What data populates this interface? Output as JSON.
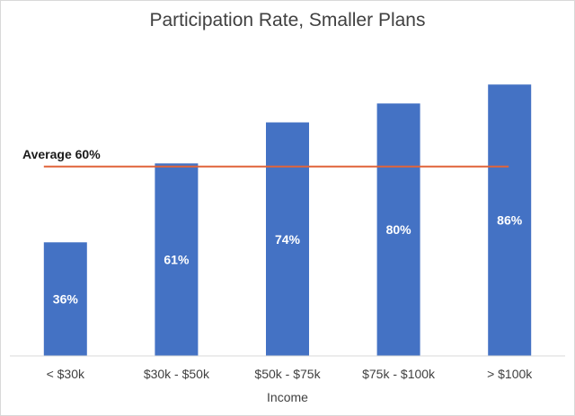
{
  "chart_data": {
    "type": "bar",
    "title": "Participation Rate, Smaller Plans",
    "xlabel": "Income",
    "ylabel": "",
    "categories": [
      "< $30k",
      "$30k - $50k",
      "$50k - $75k",
      "$75k - $100k",
      "> $100k"
    ],
    "values": [
      36,
      61,
      74,
      80,
      86
    ],
    "data_labels": [
      "36%",
      "61%",
      "74%",
      "80%",
      "86%"
    ],
    "ylim": [
      0,
      100
    ],
    "grid": false,
    "legend": "none",
    "reference_line": {
      "value": 60,
      "label": "Average 60%",
      "color": "#e0643a"
    },
    "colors": {
      "bar": "#4472c4",
      "axis": "#d9d9d9"
    }
  }
}
